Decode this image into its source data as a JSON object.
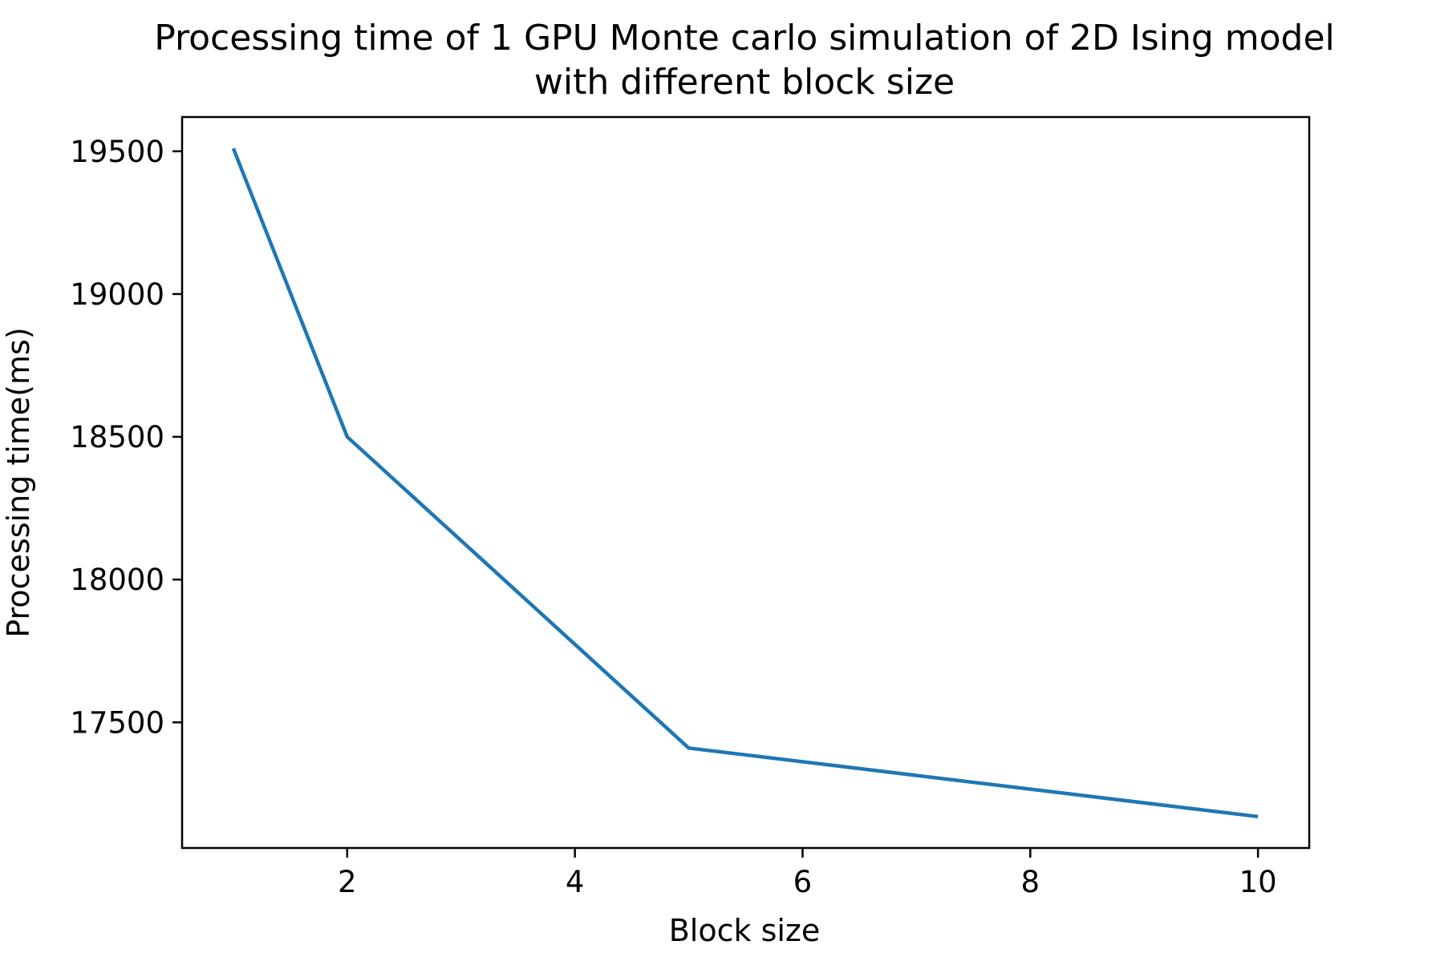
{
  "chart_data": {
    "type": "line",
    "title_lines": [
      "Processing time of 1 GPU Monte carlo simulation of 2D Ising model",
      "with different block size"
    ],
    "xlabel": "Block size",
    "ylabel": "Processing time(ms)",
    "x_ticks": [
      2,
      4,
      6,
      8,
      10
    ],
    "y_ticks": [
      17500,
      18000,
      18500,
      19000,
      19500
    ],
    "xlim": [
      0.55,
      10.45
    ],
    "ylim": [
      17060,
      19620
    ],
    "grid": false,
    "series": [
      {
        "x": [
          1,
          2,
          5,
          10
        ],
        "y": [
          19510,
          18500,
          17410,
          17170
        ],
        "color": "#1f77b4"
      }
    ]
  }
}
